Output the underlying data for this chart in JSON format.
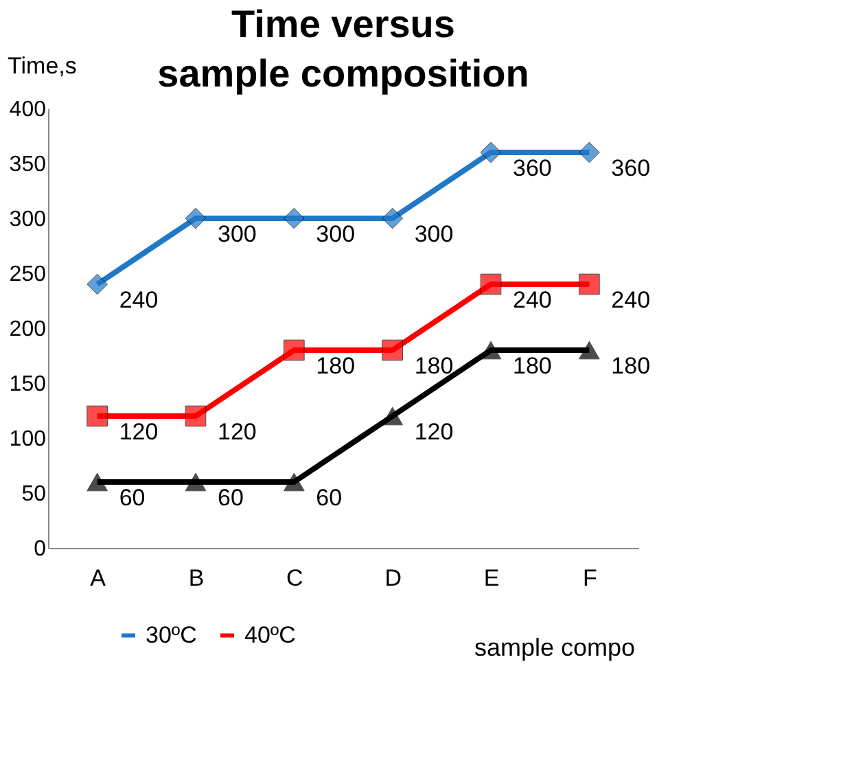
{
  "chart_data": {
    "type": "line",
    "title": "Time versus sample composition",
    "xlabel": "sample compo",
    "ylabel": "Time,s",
    "categories": [
      "A",
      "B",
      "C",
      "D",
      "E",
      "F"
    ],
    "series": [
      {
        "name": "30ºC",
        "color": "#1f78c8",
        "marker": "diamond",
        "values": [
          240,
          300,
          300,
          300,
          360,
          360
        ]
      },
      {
        "name": "40ºC",
        "color": "#ff0000",
        "marker": "square",
        "values": [
          120,
          120,
          180,
          180,
          240,
          240
        ]
      },
      {
        "color": "#000000",
        "marker": "triangle",
        "values": [
          60,
          60,
          60,
          120,
          180,
          180
        ]
      }
    ],
    "ylim": [
      0,
      400
    ],
    "yticks": [
      0,
      50,
      100,
      150,
      200,
      250,
      300,
      350,
      400
    ],
    "data_labels": true,
    "legend": "bottom",
    "grid": false
  }
}
